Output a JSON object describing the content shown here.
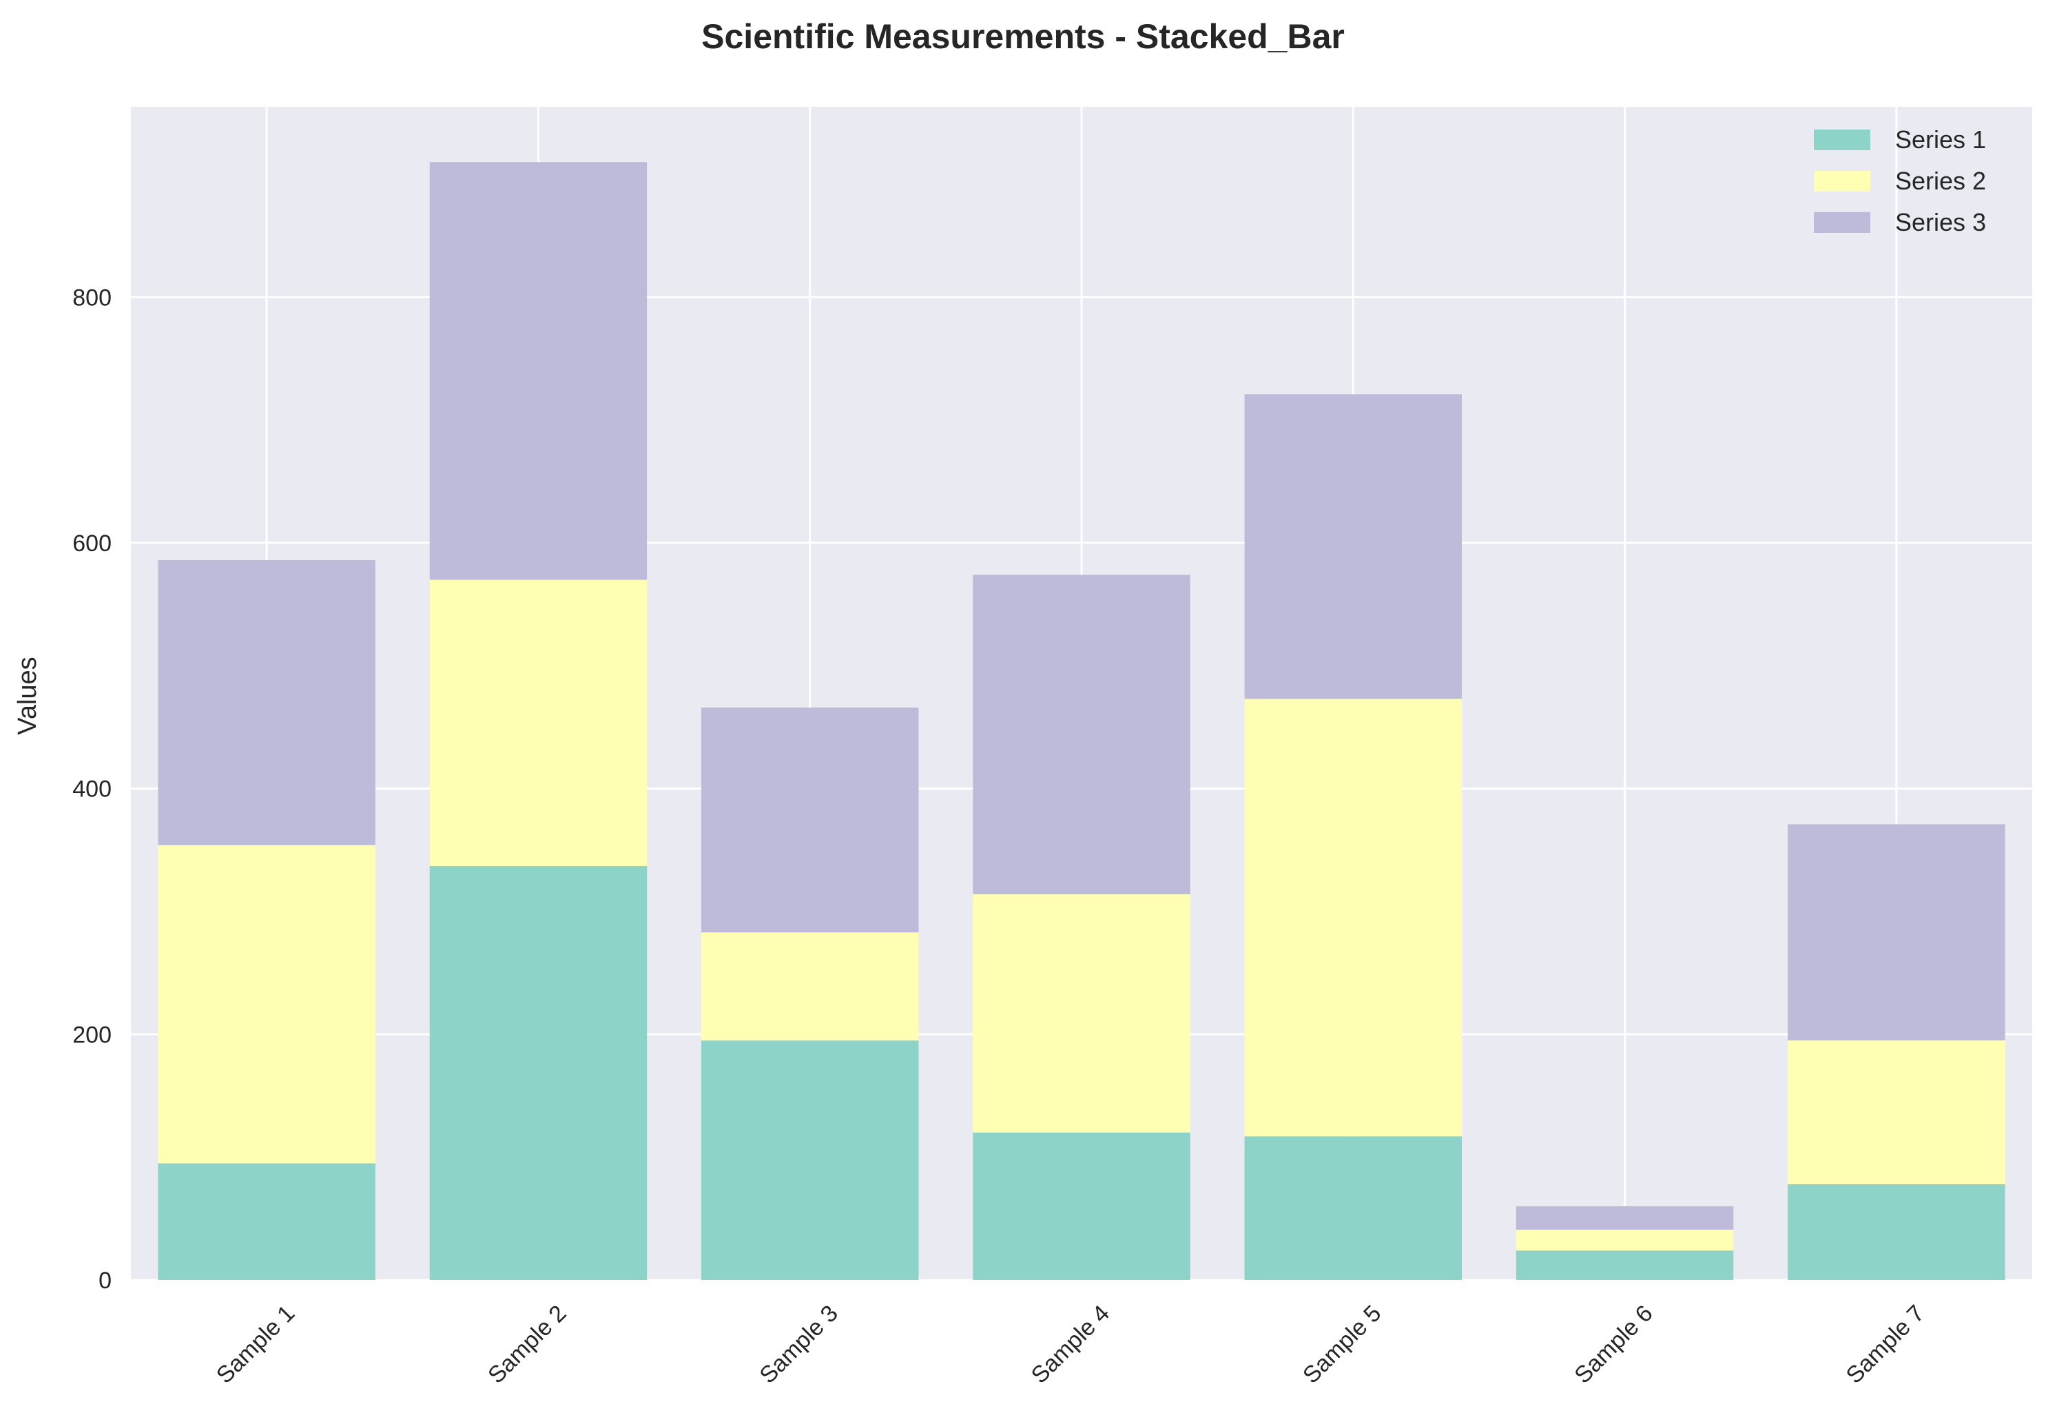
{
  "chart_data": {
    "type": "bar",
    "stacked": true,
    "title": "Scientific Measurements - Stacked_Bar",
    "xlabel": "",
    "ylabel": "Values",
    "ylim": [
      0,
      955
    ],
    "yticks": [
      0,
      200,
      400,
      600,
      800
    ],
    "categories": [
      "Sample 1",
      "Sample 2",
      "Sample 3",
      "Sample 4",
      "Sample 5",
      "Sample 6",
      "Sample 7"
    ],
    "series": [
      {
        "name": "Series 1",
        "color": "#8dd3c7",
        "values": [
          95,
          337,
          195,
          120,
          117,
          24,
          78
        ]
      },
      {
        "name": "Series 2",
        "color": "#ffffb3",
        "values": [
          259,
          233,
          88,
          194,
          356,
          17,
          117
        ]
      },
      {
        "name": "Series 3",
        "color": "#bebada",
        "values": [
          232,
          340,
          183,
          260,
          248,
          19,
          176
        ]
      }
    ],
    "grid": true,
    "legend_position": "top-right",
    "background": "#eaeaf2"
  }
}
